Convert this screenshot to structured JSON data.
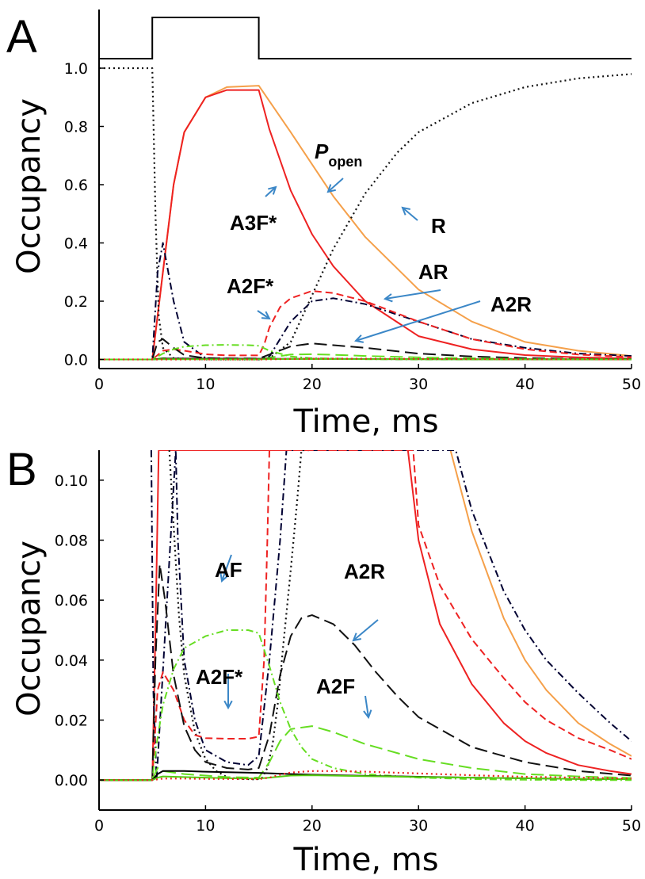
{
  "chart_data": [
    {
      "panel": "A",
      "type": "line",
      "xlabel": "Time, ms",
      "ylabel": "Occupancy",
      "xlim": [
        0,
        50
      ],
      "ylim": [
        0,
        1.0
      ],
      "xticks": [
        "0",
        "10",
        "20",
        "30",
        "40",
        "50"
      ],
      "yticks": [
        "0.0",
        "0.2",
        "0.4",
        "0.6",
        "0.8",
        "1.0"
      ],
      "stimulus": {
        "on": 5,
        "off": 15
      },
      "annotations": [
        {
          "text": "P",
          "sub": "open"
        },
        {
          "text": "A3F*"
        },
        {
          "text": "R"
        },
        {
          "text": "AR"
        },
        {
          "text": "A2F*"
        },
        {
          "text": "A2R"
        }
      ],
      "series": [
        {
          "color": "#f5a04a",
          "dash": "solid",
          "x": [
            0,
            5,
            6,
            7,
            8,
            10,
            12,
            15,
            18,
            20,
            22,
            25,
            30,
            35,
            40,
            45,
            50
          ],
          "y": [
            0,
            0,
            0.3,
            0.6,
            0.78,
            0.9,
            0.935,
            0.94,
            0.78,
            0.67,
            0.56,
            0.42,
            0.24,
            0.13,
            0.06,
            0.03,
            0.012
          ]
        },
        {
          "color": "#ee2222",
          "dash": "solid",
          "x": [
            0,
            5,
            6,
            7,
            8,
            10,
            12,
            15,
            16,
            18,
            20,
            22,
            25,
            30,
            35,
            40,
            45,
            50
          ],
          "y": [
            0,
            0,
            0.3,
            0.6,
            0.78,
            0.9,
            0.925,
            0.925,
            0.79,
            0.58,
            0.43,
            0.32,
            0.2,
            0.08,
            0.035,
            0.015,
            0.007,
            0.003
          ]
        },
        {
          "color": "#111111",
          "dash": "dotted",
          "x": [
            0,
            5,
            5.3,
            5.6,
            6,
            7,
            10,
            15,
            16,
            18,
            20,
            22,
            25,
            28,
            30,
            35,
            40,
            45,
            50
          ],
          "y": [
            1.0,
            1.0,
            0.5,
            0.15,
            0.04,
            0.004,
            0,
            0,
            0.004,
            0.06,
            0.22,
            0.38,
            0.57,
            0.71,
            0.78,
            0.88,
            0.935,
            0.965,
            0.98
          ]
        },
        {
          "color": "#000033",
          "dash": "dashdot",
          "x": [
            0,
            5,
            5.5,
            6,
            7,
            8,
            10,
            15,
            16,
            18,
            20,
            22,
            25,
            30,
            35,
            40,
            45,
            50
          ],
          "y": [
            0,
            0,
            0.3,
            0.4,
            0.2,
            0.06,
            0.005,
            0,
            0.01,
            0.13,
            0.2,
            0.21,
            0.19,
            0.13,
            0.07,
            0.04,
            0.02,
            0.012
          ]
        },
        {
          "color": "#ee2222",
          "dash": "dashed",
          "x": [
            0,
            5,
            6,
            7,
            8,
            10,
            12,
            15,
            15.5,
            16,
            17,
            18,
            20,
            22,
            25,
            30,
            35,
            40,
            45,
            50
          ],
          "y": [
            0,
            0,
            0.03,
            0.035,
            0.03,
            0.018,
            0.014,
            0.014,
            0.05,
            0.11,
            0.18,
            0.21,
            0.235,
            0.228,
            0.2,
            0.13,
            0.07,
            0.035,
            0.017,
            0.008
          ]
        },
        {
          "color": "#111111",
          "dash": "longdash",
          "x": [
            0,
            5,
            5.5,
            6,
            7,
            8,
            10,
            15,
            18,
            20,
            25,
            30,
            35,
            40,
            45,
            50
          ],
          "y": [
            0,
            0,
            0.06,
            0.07,
            0.04,
            0.015,
            0.004,
            0.003,
            0.045,
            0.055,
            0.04,
            0.02,
            0.01,
            0.005,
            0.002,
            0.001
          ]
        },
        {
          "color": "#66dd22",
          "dash": "dashdot",
          "x": [
            0,
            5,
            6,
            7,
            8,
            10,
            12,
            14,
            15,
            16,
            18,
            20,
            25,
            30,
            35,
            40,
            45,
            50
          ],
          "y": [
            0,
            0,
            0.02,
            0.035,
            0.044,
            0.049,
            0.05,
            0.049,
            0.047,
            0.03,
            0.01,
            0.004,
            0.001,
            0,
            0,
            0,
            0,
            0
          ]
        },
        {
          "color": "#66dd22",
          "dash": "longdash",
          "x": [
            0,
            5,
            6,
            8,
            10,
            15,
            16,
            18,
            20,
            22,
            25,
            30,
            35,
            40,
            45,
            50
          ],
          "y": [
            0,
            0,
            0.004,
            0.002,
            0.001,
            0,
            0.006,
            0.017,
            0.018,
            0.016,
            0.012,
            0.007,
            0.004,
            0.002,
            0.001,
            0
          ]
        },
        {
          "color": "#000000",
          "dash": "solid",
          "x": [
            0,
            5,
            6,
            8,
            10,
            15,
            17,
            20,
            25,
            30,
            40,
            50
          ],
          "y": [
            0,
            0,
            0.003,
            0.003,
            0.0028,
            0.0025,
            0.002,
            0.0018,
            0.0014,
            0.001,
            0.0005,
            0.0002
          ]
        },
        {
          "color": "#55cc11",
          "dash": "solid",
          "x": [
            0,
            5,
            6,
            10,
            15,
            18,
            25,
            30,
            40,
            50
          ],
          "y": [
            0,
            0,
            0.001,
            0.0008,
            0.0005,
            0.0015,
            0.001,
            0.0008,
            0.0004,
            0.0002
          ]
        },
        {
          "color": "#ee2222",
          "dash": "dotted",
          "x": [
            0,
            5,
            15,
            17,
            20,
            22,
            25,
            30,
            40,
            50
          ],
          "y": [
            0,
            0,
            0,
            0.001,
            0.0025,
            0.0027,
            0.0025,
            0.0018,
            0.0008,
            0.0004
          ]
        }
      ]
    },
    {
      "panel": "B",
      "type": "line",
      "xlabel": "Time, ms",
      "ylabel": "Occupancy",
      "xlim": [
        0,
        50
      ],
      "ylim": [
        -0.01,
        0.11
      ],
      "xticks": [
        "0",
        "10",
        "20",
        "30",
        "40",
        "50"
      ],
      "yticks": [
        "0.00",
        "0.02",
        "0.04",
        "0.06",
        "0.08",
        "0.10"
      ],
      "annotations": [
        {
          "text": "AF"
        },
        {
          "text": "A2R"
        },
        {
          "text": "A2F*"
        },
        {
          "text": "A2F"
        }
      ],
      "series": [
        {
          "color": "#f5a04a",
          "dash": "solid",
          "x": [
            33,
            35,
            38,
            40,
            42,
            45,
            48,
            50
          ],
          "y": [
            0.11,
            0.083,
            0.054,
            0.04,
            0.03,
            0.019,
            0.012,
            0.008
          ]
        },
        {
          "color": "#ee2222",
          "dash": "solid",
          "x": [
            0,
            5,
            5.3,
            5.6,
            29,
            30,
            32,
            35,
            38,
            40,
            42,
            45,
            48,
            50
          ],
          "y": [
            0,
            0,
            0.05,
            0.11,
            0.11,
            0.08,
            0.052,
            0.032,
            0.019,
            0.013,
            0.009,
            0.005,
            0.003,
            0.002
          ]
        },
        {
          "color": "#000033",
          "dash": "dashdot",
          "x": [
            4.9,
            5.1,
            5.4,
            7.2,
            7.4,
            8.0,
            9.0,
            10.0,
            12.0,
            14.0,
            15.0,
            16.0,
            17.0,
            17.6,
            33.5,
            35,
            38,
            40,
            42,
            45,
            48,
            50
          ],
          "y": [
            0.11,
            0.03,
            0,
            0.11,
            0.08,
            0.04,
            0.02,
            0.01,
            0.006,
            0.005,
            0.008,
            0.04,
            0.08,
            0.11,
            0.11,
            0.09,
            0.063,
            0.05,
            0.04,
            0.029,
            0.019,
            0.013
          ]
        },
        {
          "color": "#111111",
          "dash": "dotted",
          "x": [
            6.6,
            7,
            7.5,
            8,
            9,
            10,
            11,
            12,
            13,
            14,
            14.8,
            15.3,
            15.8,
            16.3,
            16.8,
            17.3,
            18,
            18.6,
            19,
            20
          ],
          "y": [
            0.11,
            0.085,
            0.055,
            0.035,
            0.016,
            0.007,
            0.003,
            0.001,
            0.0005,
            0.0003,
            0.0002,
            0.0007,
            0.004,
            0.012,
            0.026,
            0.045,
            0.07,
            0.093,
            0.11,
            0.11
          ]
        },
        {
          "color": "#ee2222",
          "dash": "dashed",
          "x": [
            0,
            5,
            5.5,
            6,
            7,
            8,
            9,
            10,
            12,
            14,
            15,
            15.5,
            15.8,
            16,
            16.2,
            29.5,
            30,
            32,
            35,
            38,
            40,
            42,
            45,
            48,
            50
          ],
          "y": [
            0,
            0,
            0.03,
            0.036,
            0.03,
            0.02,
            0.015,
            0.014,
            0.0138,
            0.0138,
            0.0145,
            0.04,
            0.08,
            0.11,
            0.11,
            0.11,
            0.085,
            0.065,
            0.047,
            0.034,
            0.026,
            0.02,
            0.014,
            0.01,
            0.007
          ]
        },
        {
          "color": "#111111",
          "dash": "longdash",
          "x": [
            0,
            5,
            5.3,
            5.7,
            6.2,
            7,
            8,
            9,
            10,
            12,
            14,
            15,
            16,
            17,
            18,
            19,
            20,
            22,
            24,
            26,
            28,
            30,
            35,
            40,
            45,
            50
          ],
          "y": [
            0,
            0,
            0.04,
            0.072,
            0.06,
            0.035,
            0.018,
            0.01,
            0.006,
            0.004,
            0.0035,
            0.004,
            0.015,
            0.035,
            0.048,
            0.054,
            0.055,
            0.052,
            0.045,
            0.036,
            0.028,
            0.021,
            0.011,
            0.006,
            0.003,
            0.0015
          ]
        },
        {
          "color": "#66dd22",
          "dash": "dashdot",
          "x": [
            0,
            5,
            5.4,
            6,
            7,
            8,
            10,
            12,
            14,
            15,
            16,
            17,
            18,
            19,
            20,
            22,
            25,
            30,
            35,
            40,
            45,
            50
          ],
          "y": [
            0,
            0,
            0.012,
            0.025,
            0.037,
            0.044,
            0.048,
            0.05,
            0.05,
            0.049,
            0.038,
            0.026,
            0.017,
            0.011,
            0.007,
            0.004,
            0.002,
            0.0008,
            0.0003,
            0.0001,
            0,
            0
          ]
        },
        {
          "color": "#66dd22",
          "dash": "longdash",
          "x": [
            0,
            5,
            5.5,
            6,
            8,
            10,
            12,
            15,
            16,
            17,
            18,
            20,
            22,
            25,
            28,
            30,
            35,
            40,
            45,
            50
          ],
          "y": [
            0,
            0,
            0.004,
            0.003,
            0.002,
            0.0015,
            0.001,
            0.0008,
            0.006,
            0.013,
            0.017,
            0.018,
            0.016,
            0.012,
            0.009,
            0.007,
            0.004,
            0.002,
            0.0012,
            0.0007
          ]
        },
        {
          "color": "#000000",
          "dash": "solid",
          "x": [
            0,
            5,
            5.5,
            6,
            8,
            10,
            12,
            15,
            18,
            20,
            25,
            30,
            35,
            40,
            45,
            50
          ],
          "y": [
            0,
            0,
            0.002,
            0.003,
            0.003,
            0.0028,
            0.0026,
            0.0024,
            0.002,
            0.0018,
            0.0014,
            0.0011,
            0.0008,
            0.0006,
            0.0004,
            0.0003
          ]
        },
        {
          "color": "#55cc11",
          "dash": "solid",
          "x": [
            0,
            5,
            5.5,
            6,
            8,
            10,
            12,
            15,
            16,
            18,
            20,
            25,
            30,
            35,
            40,
            45,
            50
          ],
          "y": [
            0,
            0,
            0.0008,
            0.0012,
            0.001,
            0.0008,
            0.0006,
            0.0005,
            0.0008,
            0.0015,
            0.0016,
            0.0013,
            0.001,
            0.0008,
            0.0006,
            0.0004,
            0.0003
          ]
        },
        {
          "color": "#ee2222",
          "dash": "dotted",
          "x": [
            0,
            5,
            6,
            8,
            10,
            15,
            16,
            17,
            18,
            20,
            22,
            25,
            30,
            35,
            40,
            45,
            50
          ],
          "y": [
            0,
            0,
            0.0005,
            0.0005,
            0.0004,
            0.0003,
            0.0008,
            0.0018,
            0.0025,
            0.003,
            0.003,
            0.0028,
            0.0022,
            0.0016,
            0.0011,
            0.0008,
            0.0005
          ]
        }
      ]
    }
  ]
}
